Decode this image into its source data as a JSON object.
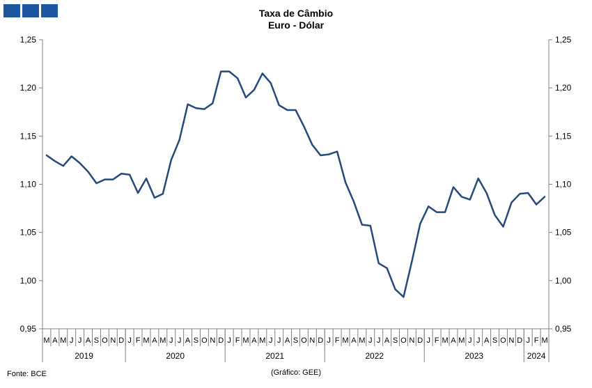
{
  "title_line1": "Taxa de Câmbio",
  "title_line2": "Euro - Dólar",
  "source": "Fonte: BCE",
  "credit": "(Gráfico: GEE)",
  "colors": {
    "line": "#24497a",
    "logo": "#1f56a0",
    "axis": "#808080"
  },
  "chart_data": {
    "type": "line",
    "title": "Taxa de Câmbio Euro - Dólar",
    "ylim": [
      0.95,
      1.25
    ],
    "y_ticks": [
      "0,95",
      "1,00",
      "1,05",
      "1,10",
      "1,15",
      "1,20",
      "1,25"
    ],
    "y_tick_values": [
      0.95,
      1.0,
      1.05,
      1.1,
      1.15,
      1.2,
      1.25
    ],
    "month_labels": [
      "M",
      "A",
      "M",
      "J",
      "J",
      "A",
      "S",
      "O",
      "N",
      "D",
      "J",
      "F",
      "M",
      "A",
      "M",
      "J",
      "J",
      "A",
      "S",
      "O",
      "N",
      "D",
      "J",
      "F",
      "M",
      "A",
      "M",
      "J",
      "J",
      "A",
      "S",
      "O",
      "N",
      "D",
      "J",
      "F",
      "M",
      "A",
      "M",
      "J",
      "J",
      "A",
      "S",
      "O",
      "N",
      "D",
      "J",
      "F",
      "M",
      "A",
      "M",
      "J",
      "J",
      "A",
      "S",
      "O",
      "N",
      "D",
      "J",
      "F",
      "M"
    ],
    "years": [
      {
        "label": "2019",
        "months": 10
      },
      {
        "label": "2020",
        "months": 12
      },
      {
        "label": "2021",
        "months": 12
      },
      {
        "label": "2022",
        "months": 12
      },
      {
        "label": "2023",
        "months": 12
      },
      {
        "label": "2024",
        "months": 3
      }
    ],
    "series": [
      {
        "values": [
          1.13,
          1.124,
          1.119,
          1.129,
          1.122,
          1.113,
          1.101,
          1.105,
          1.105,
          1.111,
          1.11,
          1.091,
          1.106,
          1.086,
          1.09,
          1.125,
          1.146,
          1.183,
          1.179,
          1.178,
          1.184,
          1.217,
          1.217,
          1.21,
          1.19,
          1.198,
          1.215,
          1.205,
          1.182,
          1.177,
          1.177,
          1.16,
          1.141,
          1.13,
          1.131,
          1.134,
          1.102,
          1.082,
          1.058,
          1.057,
          1.018,
          1.013,
          0.991,
          0.983,
          1.02,
          1.059,
          1.077,
          1.071,
          1.071,
          1.097,
          1.087,
          1.084,
          1.106,
          1.091,
          1.068,
          1.056,
          1.081,
          1.09,
          1.091,
          1.079,
          1.087
        ]
      }
    ]
  }
}
